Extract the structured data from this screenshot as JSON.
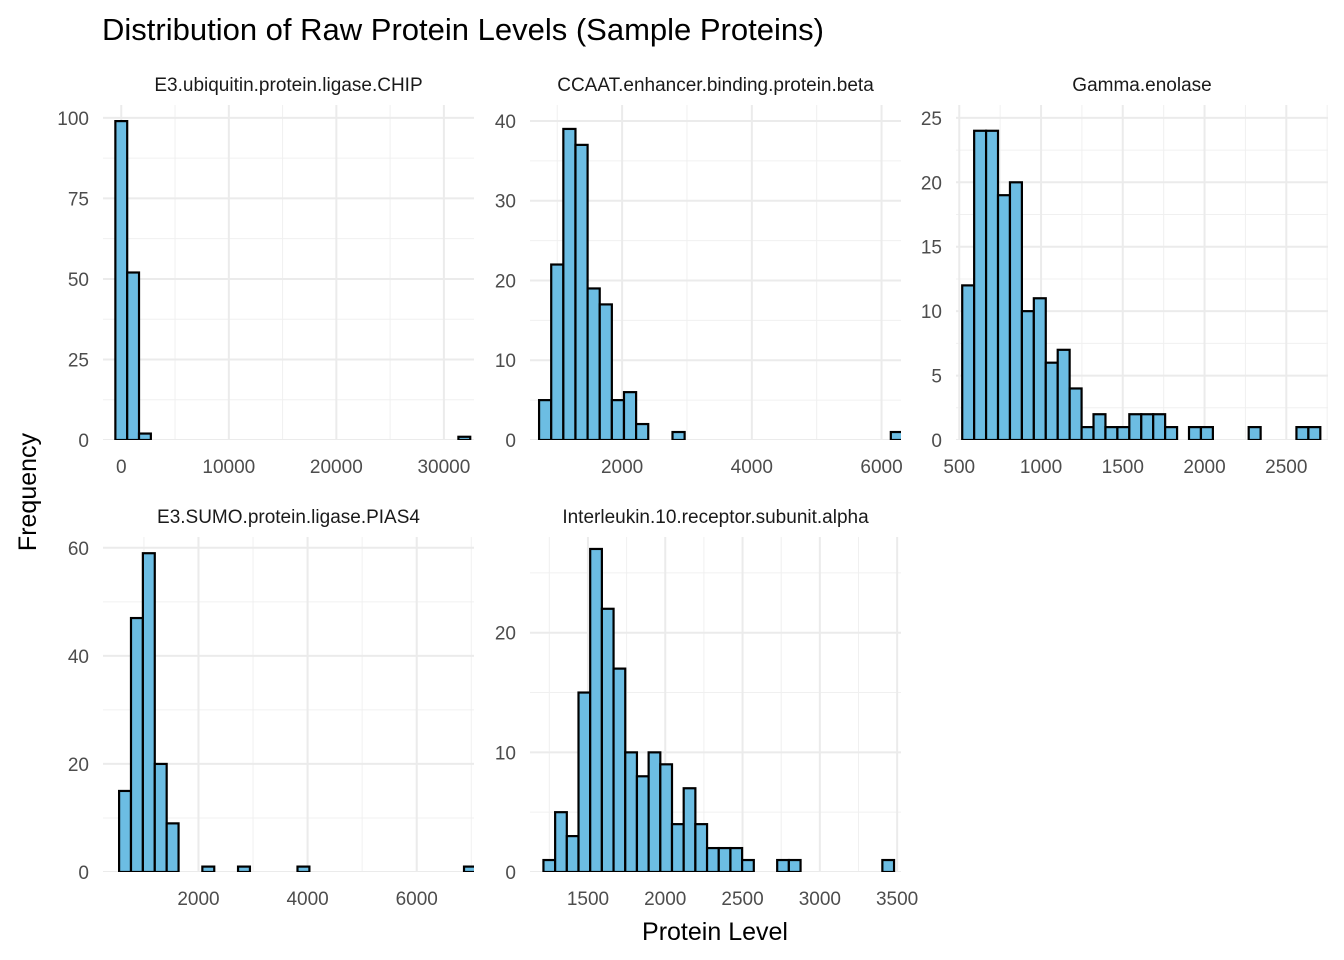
{
  "chart_data": {
    "type": "bar",
    "title": "Distribution of Raw Protein Levels (Sample Proteins)",
    "xlabel": "Protein Level",
    "ylabel": "Frequency",
    "bar_fill": "#6cbde3",
    "bar_stroke": "#000000",
    "grid": true,
    "legend": "none",
    "panels": [
      {
        "name": "E3.ubiquitin.protein.ligase.CHIP",
        "xlim": [
          -1700,
          32800
        ],
        "ylim": [
          0,
          104
        ],
        "x_ticks": [
          0,
          10000,
          20000,
          30000
        ],
        "x_tick_labels": [
          "0",
          "10000",
          "20000",
          "30000"
        ],
        "y_ticks": [
          0,
          25,
          50,
          75,
          100
        ],
        "y_tick_labels": [
          "0",
          "25",
          "50",
          "75",
          "100"
        ],
        "bin_start": -550,
        "bin_width": 1100,
        "counts": [
          99,
          52,
          2,
          0,
          0,
          0,
          0,
          0,
          0,
          0,
          0,
          0,
          0,
          0,
          0,
          0,
          0,
          0,
          0,
          0,
          0,
          0,
          0,
          0,
          0,
          0,
          0,
          0,
          0,
          1
        ]
      },
      {
        "name": "CCAAT.enhancer.binding.protein.beta",
        "xlim": [
          580,
          6300
        ],
        "ylim": [
          0,
          42
        ],
        "x_ticks": [
          2000,
          4000,
          6000
        ],
        "x_tick_labels": [
          "2000",
          "4000",
          "6000"
        ],
        "y_ticks": [
          0,
          10,
          20,
          30,
          40
        ],
        "y_tick_labels": [
          "0",
          "10",
          "20",
          "30",
          "40"
        ],
        "bin_start": 720,
        "bin_width": 187,
        "counts": [
          5,
          22,
          39,
          37,
          19,
          17,
          5,
          6,
          2,
          0,
          0,
          1,
          0,
          0,
          0,
          0,
          0,
          0,
          0,
          0,
          0,
          0,
          0,
          0,
          0,
          0,
          0,
          0,
          0,
          1
        ]
      },
      {
        "name": "Gamma.enolase",
        "xlim": [
          480,
          2755
        ],
        "ylim": [
          0,
          26
        ],
        "x_ticks": [
          500,
          1000,
          1500,
          2000,
          2500
        ],
        "x_tick_labels": [
          "500",
          "1000",
          "1500",
          "2000",
          "2500"
        ],
        "y_ticks": [
          0,
          5,
          10,
          15,
          20,
          25
        ],
        "y_tick_labels": [
          "0",
          "5",
          "10",
          "15",
          "20",
          "25"
        ],
        "bin_start": 518,
        "bin_width": 73,
        "counts": [
          12,
          24,
          24,
          19,
          20,
          10,
          11,
          6,
          7,
          4,
          1,
          2,
          1,
          1,
          2,
          2,
          2,
          1,
          0,
          1,
          1,
          0,
          0,
          0,
          1,
          0,
          0,
          0,
          1,
          1
        ]
      },
      {
        "name": "E3.SUMO.protein.ligase.PIAS4",
        "xlim": [
          250,
          7050
        ],
        "ylim": [
          0,
          62
        ],
        "x_ticks": [
          2000,
          4000,
          6000
        ],
        "x_tick_labels": [
          "2000",
          "4000",
          "6000"
        ],
        "y_ticks": [
          0,
          20,
          40,
          60
        ],
        "y_tick_labels": [
          "0",
          "20",
          "40",
          "60"
        ],
        "bin_start": 545,
        "bin_width": 218,
        "counts": [
          15,
          47,
          59,
          20,
          9,
          0,
          0,
          1,
          0,
          0,
          1,
          0,
          0,
          0,
          0,
          1,
          0,
          0,
          0,
          0,
          0,
          0,
          0,
          0,
          0,
          0,
          0,
          0,
          0,
          1
        ]
      },
      {
        "name": "Interleukin.10.receptor.subunit.alpha",
        "xlim": [
          1125,
          3525
        ],
        "ylim": [
          0,
          28
        ],
        "x_ticks": [
          1500,
          2000,
          2500,
          3000,
          3500
        ],
        "x_tick_labels": [
          "1500",
          "2000",
          "2500",
          "3000",
          "3500"
        ],
        "y_ticks": [
          0,
          10,
          20
        ],
        "y_tick_labels": [
          "0",
          "10",
          "20"
        ],
        "bin_start": 1212,
        "bin_width": 75.6,
        "counts": [
          1,
          5,
          3,
          15,
          27,
          22,
          17,
          10,
          8,
          10,
          9,
          4,
          7,
          4,
          2,
          2,
          2,
          1,
          0,
          0,
          1,
          1,
          0,
          0,
          0,
          0,
          0,
          0,
          0,
          1
        ]
      }
    ]
  }
}
